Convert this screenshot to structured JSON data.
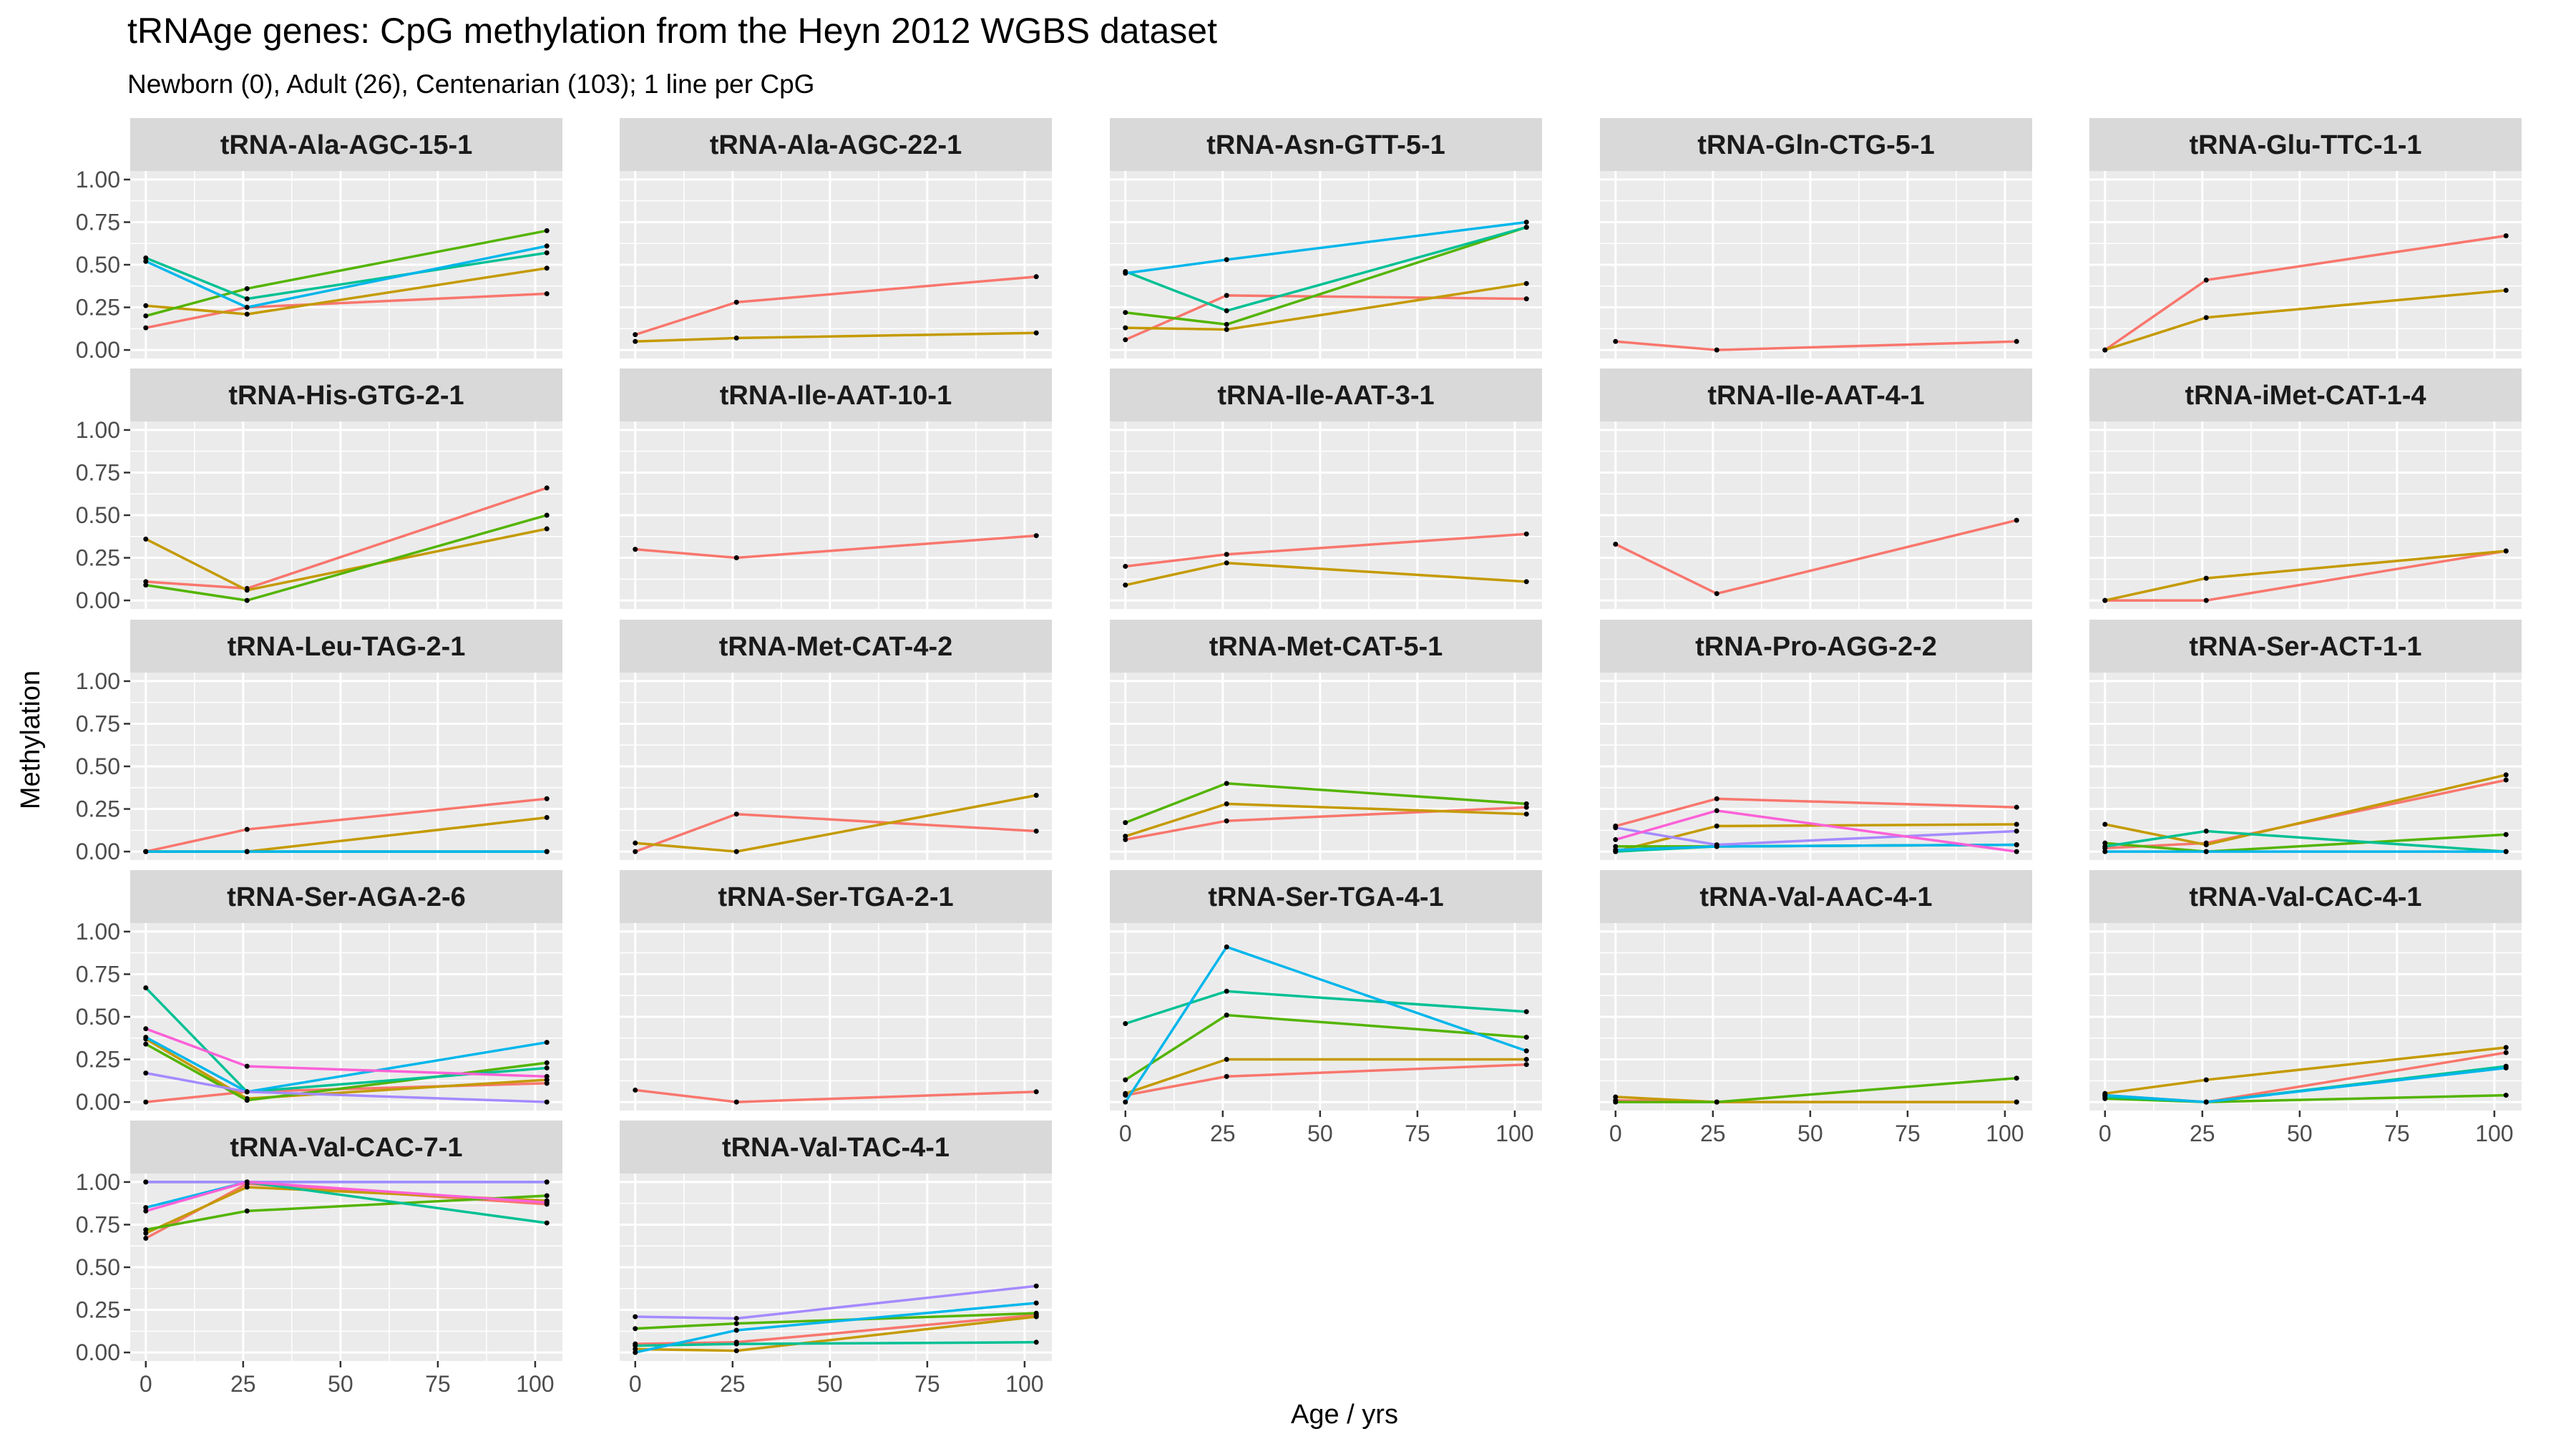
{
  "chart_data": {
    "type": "line",
    "title": "tRNAge genes: CpG methylation from the Heyn 2012 WGBS dataset",
    "subtitle": "Newborn (0), Adult (26), Centenarian (103); 1 line per CpG",
    "xlabel": "Age / yrs",
    "ylabel": "Methylation",
    "x": [
      0,
      26,
      103
    ],
    "xlim": [
      -4,
      107
    ],
    "ylim": [
      -0.05,
      1.05
    ],
    "x_ticks": [
      0,
      25,
      50,
      75,
      100
    ],
    "x_tick_labels": [
      "0",
      "25",
      "50",
      "75",
      "100"
    ],
    "y_ticks": [
      0,
      0.25,
      0.5,
      0.75,
      1
    ],
    "y_tick_labels": [
      "0.00",
      "0.25",
      "0.50",
      "0.75",
      "1.00"
    ],
    "grid": true,
    "panel_color": "#ebebeb",
    "strip_color": "#d9d9d9",
    "series_colors": [
      "#f8766d",
      "#c49a00",
      "#53b400",
      "#00c094",
      "#00b6eb",
      "#a58aff",
      "#fb61d7"
    ],
    "facets": [
      {
        "name": "tRNA-Ala-AGC-15-1",
        "series": [
          [
            0.13,
            0.25,
            0.33
          ],
          [
            0.26,
            0.21,
            0.48
          ],
          [
            0.2,
            0.36,
            0.7
          ],
          [
            0.54,
            0.3,
            0.57
          ],
          [
            0.52,
            0.25,
            0.61
          ]
        ]
      },
      {
        "name": "tRNA-Ala-AGC-22-1",
        "series": [
          [
            0.09,
            0.28,
            0.43
          ],
          [
            0.05,
            0.07,
            0.1
          ]
        ]
      },
      {
        "name": "tRNA-Asn-GTT-5-1",
        "series": [
          [
            0.06,
            0.32,
            0.3
          ],
          [
            0.13,
            0.12,
            0.39
          ],
          [
            0.22,
            0.15,
            0.72
          ],
          [
            0.46,
            0.23,
            0.72
          ],
          [
            0.45,
            0.53,
            0.75
          ]
        ]
      },
      {
        "name": "tRNA-Gln-CTG-5-1",
        "series": [
          [
            0.05,
            0.0,
            0.05
          ]
        ]
      },
      {
        "name": "tRNA-Glu-TTC-1-1",
        "series": [
          [
            0.0,
            0.41,
            0.67
          ],
          [
            0.0,
            0.19,
            0.35
          ]
        ]
      },
      {
        "name": "tRNA-His-GTG-2-1",
        "series": [
          [
            0.11,
            0.07,
            0.66
          ],
          [
            0.36,
            0.06,
            0.42
          ],
          [
            0.09,
            0.0,
            0.5
          ]
        ]
      },
      {
        "name": "tRNA-Ile-AAT-10-1",
        "series": [
          [
            0.3,
            0.25,
            0.38
          ]
        ]
      },
      {
        "name": "tRNA-Ile-AAT-3-1",
        "series": [
          [
            0.2,
            0.27,
            0.39
          ],
          [
            0.09,
            0.22,
            0.11
          ]
        ]
      },
      {
        "name": "tRNA-Ile-AAT-4-1",
        "series": [
          [
            0.33,
            0.04,
            0.47
          ]
        ]
      },
      {
        "name": "tRNA-iMet-CAT-1-4",
        "series": [
          [
            0.0,
            0.0,
            0.29
          ],
          [
            0.0,
            0.13,
            0.29
          ]
        ]
      },
      {
        "name": "tRNA-Leu-TAG-2-1",
        "series": [
          [
            0.0,
            0.13,
            0.31
          ],
          [
            0.0,
            0.0,
            0.2
          ],
          [
            0.0,
            0.0,
            0.0
          ],
          [
            0.0,
            0.0,
            0.0
          ],
          [
            0.0,
            0.0,
            0.0
          ]
        ]
      },
      {
        "name": "tRNA-Met-CAT-4-2",
        "series": [
          [
            0.0,
            0.22,
            0.12
          ],
          [
            0.05,
            0.0,
            0.33
          ]
        ]
      },
      {
        "name": "tRNA-Met-CAT-5-1",
        "series": [
          [
            0.07,
            0.18,
            0.26
          ],
          [
            0.09,
            0.28,
            0.22
          ],
          [
            0.17,
            0.4,
            0.28
          ]
        ]
      },
      {
        "name": "tRNA-Pro-AGG-2-2",
        "series": [
          [
            0.15,
            0.31,
            0.26
          ],
          [
            0.0,
            0.15,
            0.16
          ],
          [
            0.03,
            0.03,
            0.04
          ],
          [
            0.0,
            0.03,
            0.04
          ],
          [
            0.01,
            0.03,
            0.04
          ],
          [
            0.14,
            0.04,
            0.12
          ],
          [
            0.07,
            0.24,
            0.0
          ]
        ]
      },
      {
        "name": "tRNA-Ser-ACT-1-1",
        "series": [
          [
            0.02,
            0.05,
            0.42
          ],
          [
            0.16,
            0.04,
            0.45
          ],
          [
            0.05,
            0.0,
            0.1
          ],
          [
            0.03,
            0.12,
            0.0
          ],
          [
            0.0,
            0.0,
            0.0
          ]
        ]
      },
      {
        "name": "tRNA-Ser-AGA-2-6",
        "series": [
          [
            0.0,
            0.06,
            0.11
          ],
          [
            0.37,
            0.02,
            0.13
          ],
          [
            0.34,
            0.01,
            0.23
          ],
          [
            0.67,
            0.06,
            0.2
          ],
          [
            0.38,
            0.06,
            0.35
          ],
          [
            0.17,
            0.06,
            0.0
          ],
          [
            0.43,
            0.21,
            0.15
          ]
        ]
      },
      {
        "name": "tRNA-Ser-TGA-2-1",
        "series": [
          [
            0.07,
            0.0,
            0.06
          ]
        ]
      },
      {
        "name": "tRNA-Ser-TGA-4-1",
        "series": [
          [
            0.04,
            0.15,
            0.22
          ],
          [
            0.05,
            0.25,
            0.25
          ],
          [
            0.13,
            0.51,
            0.38
          ],
          [
            0.46,
            0.65,
            0.53
          ],
          [
            0.0,
            0.91,
            0.3
          ]
        ]
      },
      {
        "name": "tRNA-Val-AAC-4-1",
        "series": [
          [
            0.01,
            0.0,
            0.0
          ],
          [
            0.03,
            0.0,
            0.0
          ],
          [
            0.0,
            0.0,
            0.14
          ]
        ]
      },
      {
        "name": "tRNA-Val-CAC-4-1",
        "series": [
          [
            0.04,
            0.0,
            0.29
          ],
          [
            0.05,
            0.13,
            0.32
          ],
          [
            0.02,
            0.0,
            0.04
          ],
          [
            0.03,
            0.0,
            0.21
          ],
          [
            0.04,
            0.0,
            0.2
          ]
        ]
      },
      {
        "name": "tRNA-Val-CAC-7-1",
        "series": [
          [
            0.67,
            0.99,
            0.87
          ],
          [
            0.7,
            0.97,
            0.89
          ],
          [
            0.72,
            0.83,
            0.92
          ],
          [
            1.0,
            1.0,
            0.76
          ],
          [
            0.85,
            1.0,
            1.0
          ],
          [
            1.0,
            1.0,
            1.0
          ],
          [
            0.83,
            1.0,
            0.88
          ]
        ]
      },
      {
        "name": "tRNA-Val-TAC-4-1",
        "series": [
          [
            0.05,
            0.06,
            0.22
          ],
          [
            0.02,
            0.01,
            0.21
          ],
          [
            0.14,
            0.17,
            0.23
          ],
          [
            0.04,
            0.05,
            0.06
          ],
          [
            0.0,
            0.13,
            0.29
          ],
          [
            0.21,
            0.2,
            0.39
          ]
        ]
      }
    ]
  }
}
